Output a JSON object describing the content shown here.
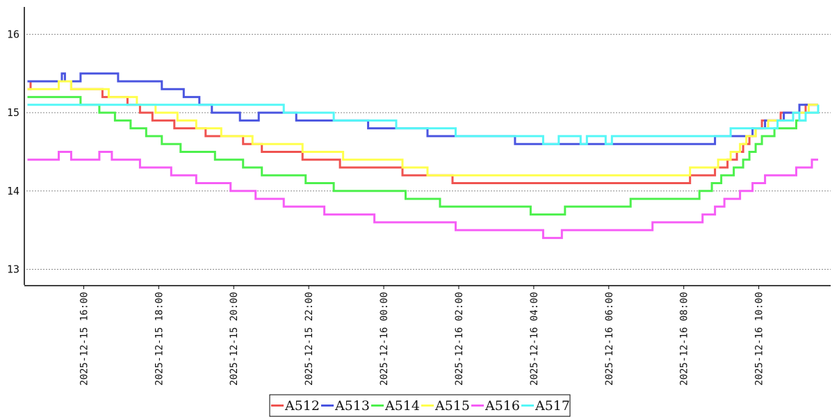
{
  "chart_data": {
    "type": "line",
    "step": true,
    "grid": "horizontal-dotted",
    "legend_position": "bottom-center",
    "ylim": [
      12.8,
      16.35
    ],
    "xlim": [
      "2025-12-15 14:25",
      "2025-12-16 11:55"
    ],
    "y_ticks": [
      "13",
      "14",
      "15",
      "16"
    ],
    "x_ticks": [
      "2025-12-15 16:00",
      "2025-12-15 18:00",
      "2025-12-15 20:00",
      "2025-12-15 22:00",
      "2025-12-16 00:00",
      "2025-12-16 02:00",
      "2025-12-16 04:00",
      "2025-12-16 06:00",
      "2025-12-16 08:00",
      "2025-12-16 10:00"
    ],
    "series": [
      {
        "name": "A512",
        "color": "#ef5350",
        "points": [
          [
            "2025-12-15 14:30",
            15.3
          ],
          [
            "2025-12-15 14:35",
            15.4
          ],
          [
            "2025-12-15 15:40",
            15.3
          ],
          [
            "2025-12-15 16:30",
            15.2
          ],
          [
            "2025-12-15 17:10",
            15.1
          ],
          [
            "2025-12-15 17:30",
            15.0
          ],
          [
            "2025-12-15 17:50",
            14.9
          ],
          [
            "2025-12-15 18:25",
            14.8
          ],
          [
            "2025-12-15 19:15",
            14.7
          ],
          [
            "2025-12-15 20:15",
            14.6
          ],
          [
            "2025-12-15 20:45",
            14.5
          ],
          [
            "2025-12-15 21:50",
            14.4
          ],
          [
            "2025-12-15 22:50",
            14.3
          ],
          [
            "2025-12-16 00:30",
            14.2
          ],
          [
            "2025-12-16 01:50",
            14.1
          ],
          [
            "2025-12-16 08:10",
            14.2
          ],
          [
            "2025-12-16 08:50",
            14.3
          ],
          [
            "2025-12-16 09:10",
            14.4
          ],
          [
            "2025-12-16 09:25",
            14.5
          ],
          [
            "2025-12-16 09:35",
            14.6
          ],
          [
            "2025-12-16 09:45",
            14.7
          ],
          [
            "2025-12-16 09:55",
            14.8
          ],
          [
            "2025-12-16 10:05",
            14.9
          ],
          [
            "2025-12-16 10:35",
            15.0
          ],
          [
            "2025-12-16 11:15",
            15.1
          ],
          [
            "2025-12-16 11:35",
            15.1
          ]
        ]
      },
      {
        "name": "A513",
        "color": "#4a55e0",
        "points": [
          [
            "2025-12-15 14:30",
            15.4
          ],
          [
            "2025-12-15 15:25",
            15.5
          ],
          [
            "2025-12-15 15:30",
            15.4
          ],
          [
            "2025-12-15 15:55",
            15.5
          ],
          [
            "2025-12-15 16:55",
            15.4
          ],
          [
            "2025-12-15 18:05",
            15.3
          ],
          [
            "2025-12-15 18:40",
            15.2
          ],
          [
            "2025-12-15 19:05",
            15.1
          ],
          [
            "2025-12-15 19:25",
            15.0
          ],
          [
            "2025-12-15 20:10",
            14.9
          ],
          [
            "2025-12-15 20:40",
            15.0
          ],
          [
            "2025-12-15 21:40",
            14.9
          ],
          [
            "2025-12-15 23:35",
            14.8
          ],
          [
            "2025-12-16 00:45",
            14.8
          ],
          [
            "2025-12-16 01:10",
            14.7
          ],
          [
            "2025-12-16 03:30",
            14.6
          ],
          [
            "2025-12-16 08:50",
            14.7
          ],
          [
            "2025-12-16 09:50",
            14.8
          ],
          [
            "2025-12-16 10:10",
            14.9
          ],
          [
            "2025-12-16 10:40",
            15.0
          ],
          [
            "2025-12-16 11:05",
            15.1
          ],
          [
            "2025-12-16 11:35",
            15.1
          ]
        ]
      },
      {
        "name": "A514",
        "color": "#4cf04c",
        "points": [
          [
            "2025-12-15 14:30",
            15.2
          ],
          [
            "2025-12-15 15:55",
            15.1
          ],
          [
            "2025-12-15 16:25",
            15.0
          ],
          [
            "2025-12-15 16:50",
            14.9
          ],
          [
            "2025-12-15 17:15",
            14.8
          ],
          [
            "2025-12-15 17:40",
            14.7
          ],
          [
            "2025-12-15 18:05",
            14.6
          ],
          [
            "2025-12-15 18:35",
            14.5
          ],
          [
            "2025-12-15 19:30",
            14.4
          ],
          [
            "2025-12-15 20:15",
            14.3
          ],
          [
            "2025-12-15 20:45",
            14.2
          ],
          [
            "2025-12-15 21:55",
            14.1
          ],
          [
            "2025-12-15 22:40",
            14.0
          ],
          [
            "2025-12-16 00:35",
            13.9
          ],
          [
            "2025-12-16 01:30",
            13.8
          ],
          [
            "2025-12-16 03:55",
            13.7
          ],
          [
            "2025-12-16 04:50",
            13.8
          ],
          [
            "2025-12-16 06:35",
            13.9
          ],
          [
            "2025-12-16 08:25",
            14.0
          ],
          [
            "2025-12-16 08:45",
            14.1
          ],
          [
            "2025-12-16 09:00",
            14.2
          ],
          [
            "2025-12-16 09:20",
            14.3
          ],
          [
            "2025-12-16 09:35",
            14.4
          ],
          [
            "2025-12-16 09:45",
            14.5
          ],
          [
            "2025-12-16 09:55",
            14.6
          ],
          [
            "2025-12-16 10:05",
            14.7
          ],
          [
            "2025-12-16 10:25",
            14.8
          ],
          [
            "2025-12-16 11:00",
            14.9
          ],
          [
            "2025-12-16 11:15",
            15.0
          ],
          [
            "2025-12-16 11:35",
            15.1
          ]
        ]
      },
      {
        "name": "A515",
        "color": "#ffff4d",
        "points": [
          [
            "2025-12-15 14:30",
            15.3
          ],
          [
            "2025-12-15 15:20",
            15.4
          ],
          [
            "2025-12-15 15:40",
            15.3
          ],
          [
            "2025-12-15 16:40",
            15.2
          ],
          [
            "2025-12-15 17:25",
            15.1
          ],
          [
            "2025-12-15 17:55",
            15.0
          ],
          [
            "2025-12-15 18:30",
            14.9
          ],
          [
            "2025-12-15 19:00",
            14.8
          ],
          [
            "2025-12-15 19:40",
            14.7
          ],
          [
            "2025-12-15 20:30",
            14.6
          ],
          [
            "2025-12-15 21:50",
            14.5
          ],
          [
            "2025-12-15 22:55",
            14.4
          ],
          [
            "2025-12-16 00:30",
            14.3
          ],
          [
            "2025-12-16 01:10",
            14.2
          ],
          [
            "2025-12-16 06:00",
            14.2
          ],
          [
            "2025-12-16 08:10",
            14.3
          ],
          [
            "2025-12-16 08:55",
            14.4
          ],
          [
            "2025-12-16 09:15",
            14.5
          ],
          [
            "2025-12-16 09:30",
            14.6
          ],
          [
            "2025-12-16 09:40",
            14.7
          ],
          [
            "2025-12-16 09:55",
            14.8
          ],
          [
            "2025-12-16 10:15",
            14.9
          ],
          [
            "2025-12-16 10:55",
            15.0
          ],
          [
            "2025-12-16 11:20",
            15.1
          ],
          [
            "2025-12-16 11:35",
            15.1
          ]
        ]
      },
      {
        "name": "A516",
        "color": "#f65df6",
        "points": [
          [
            "2025-12-15 14:30",
            14.4
          ],
          [
            "2025-12-15 15:20",
            14.5
          ],
          [
            "2025-12-15 15:40",
            14.4
          ],
          [
            "2025-12-15 16:25",
            14.5
          ],
          [
            "2025-12-15 16:45",
            14.4
          ],
          [
            "2025-12-15 17:30",
            14.3
          ],
          [
            "2025-12-15 18:20",
            14.2
          ],
          [
            "2025-12-15 19:00",
            14.1
          ],
          [
            "2025-12-15 19:55",
            14.0
          ],
          [
            "2025-12-15 20:35",
            13.9
          ],
          [
            "2025-12-15 21:20",
            13.8
          ],
          [
            "2025-12-15 22:25",
            13.7
          ],
          [
            "2025-12-15 23:45",
            13.6
          ],
          [
            "2025-12-16 01:55",
            13.5
          ],
          [
            "2025-12-16 04:15",
            13.4
          ],
          [
            "2025-12-16 04:45",
            13.5
          ],
          [
            "2025-12-16 07:10",
            13.6
          ],
          [
            "2025-12-16 08:30",
            13.7
          ],
          [
            "2025-12-16 08:50",
            13.8
          ],
          [
            "2025-12-16 09:05",
            13.9
          ],
          [
            "2025-12-16 09:30",
            14.0
          ],
          [
            "2025-12-16 09:50",
            14.1
          ],
          [
            "2025-12-16 10:10",
            14.2
          ],
          [
            "2025-12-16 11:00",
            14.3
          ],
          [
            "2025-12-16 11:25",
            14.4
          ],
          [
            "2025-12-16 11:35",
            14.4
          ]
        ]
      },
      {
        "name": "A517",
        "color": "#55f7f7",
        "points": [
          [
            "2025-12-15 14:30",
            15.1
          ],
          [
            "2025-12-15 21:20",
            15.0
          ],
          [
            "2025-12-15 22:40",
            14.9
          ],
          [
            "2025-12-16 00:15",
            14.9
          ],
          [
            "2025-12-16 00:20",
            14.8
          ],
          [
            "2025-12-16 01:55",
            14.7
          ],
          [
            "2025-12-16 03:40",
            14.7
          ],
          [
            "2025-12-16 04:15",
            14.6
          ],
          [
            "2025-12-16 04:40",
            14.7
          ],
          [
            "2025-12-16 05:15",
            14.6
          ],
          [
            "2025-12-16 05:25",
            14.7
          ],
          [
            "2025-12-16 05:55",
            14.6
          ],
          [
            "2025-12-16 06:05",
            14.7
          ],
          [
            "2025-12-16 09:05",
            14.7
          ],
          [
            "2025-12-16 09:15",
            14.8
          ],
          [
            "2025-12-16 10:30",
            14.9
          ],
          [
            "2025-12-16 10:55",
            15.0
          ],
          [
            "2025-12-16 11:05",
            14.9
          ],
          [
            "2025-12-16 11:15",
            15.0
          ],
          [
            "2025-12-16 11:35",
            15.1
          ]
        ]
      }
    ]
  }
}
